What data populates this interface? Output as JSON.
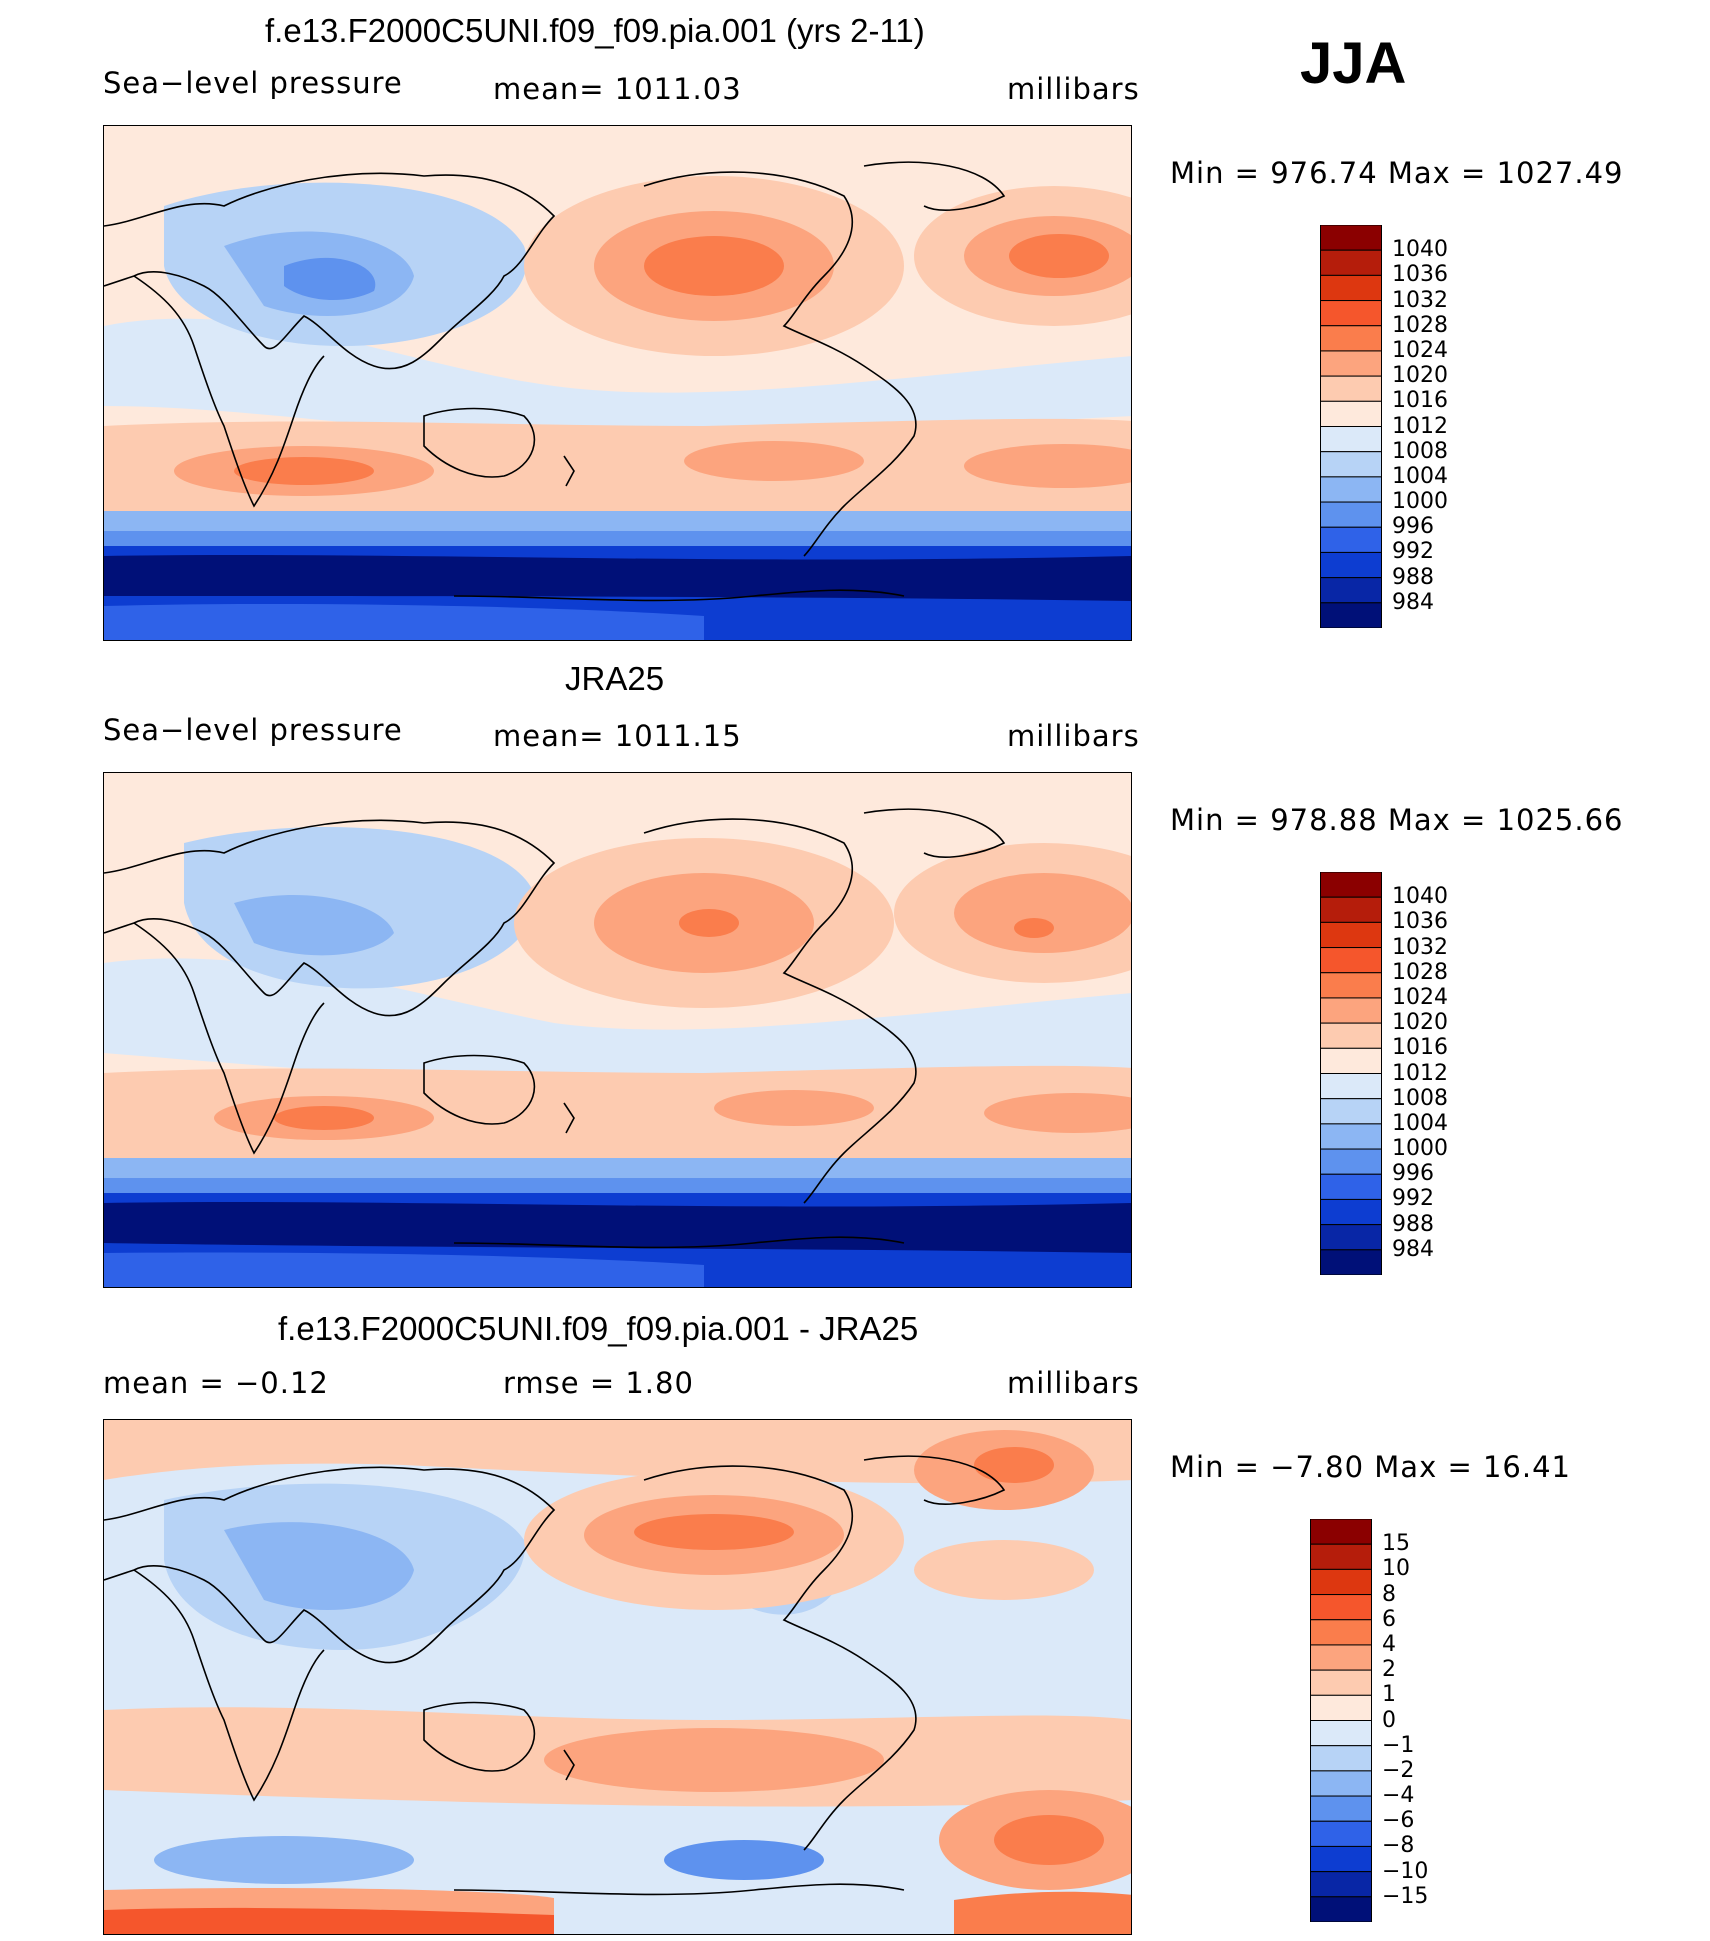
{
  "season": "JJA",
  "panels": [
    {
      "id": "model",
      "title": "f.e13.F2000C5UNI.f09_f09.pia.001 (yrs 2-11)",
      "left_label": "Sea−level pressure",
      "center_label": "mean=  1011.03",
      "units": "millibars",
      "minmax": "Min  =  976.74  Max  =  1027.49"
    },
    {
      "id": "obs",
      "title": "JRA25",
      "left_label": "Sea−level pressure",
      "center_label": "mean=  1011.15",
      "units": "millibars",
      "minmax": "Min  =  978.88  Max  =  1025.66"
    },
    {
      "id": "diff",
      "title": "f.e13.F2000C5UNI.f09_f09.pia.001 - JRA25",
      "left_label": "mean  =     −0.12",
      "center_label": "rmse  =     1.80",
      "units": "millibars",
      "minmax": "Min  =    −7.80  Max  =    16.41"
    }
  ],
  "colorbars": {
    "abs": {
      "labels": [
        "1040",
        "1036",
        "1032",
        "1028",
        "1024",
        "1020",
        "1016",
        "1012",
        "1008",
        "1004",
        "1000",
        "996",
        "992",
        "988",
        "984"
      ],
      "colors": [
        "#8b0000",
        "#b51d0b",
        "#dd3710",
        "#f5562c",
        "#fa7d4c",
        "#fca47e",
        "#fdcbb0",
        "#fee9dc",
        "#dbe9f9",
        "#b7d3f6",
        "#8cb6f3",
        "#5e92ee",
        "#2f62e8",
        "#0d3dd1",
        "#0826a6",
        "#001078"
      ]
    },
    "diff": {
      "labels": [
        "15",
        "10",
        "8",
        "6",
        "4",
        "2",
        "1",
        "0",
        "−1",
        "−2",
        "−4",
        "−6",
        "−8",
        "−10",
        "−15"
      ],
      "colors": [
        "#8b0000",
        "#b51d0b",
        "#dd3710",
        "#f5562c",
        "#fa7d4c",
        "#fca47e",
        "#fdcbb0",
        "#fee9dc",
        "#dbe9f9",
        "#b7d3f6",
        "#8cb6f3",
        "#5e92ee",
        "#2f62e8",
        "#0d3dd1",
        "#0826a6",
        "#001078"
      ]
    }
  },
  "map_colors": {
    "high_strong": "#f5562c",
    "high_mid": "#fa7d4c",
    "high_light": "#fca47e",
    "high_pale": "#fdcbb0",
    "neutral_warm": "#fee9dc",
    "neutral_cool": "#dbe9f9",
    "low_light": "#b7d3f6",
    "low_mid": "#8cb6f3",
    "low_strong": "#5e92ee",
    "low_deep": "#2f62e8",
    "low_deeper": "#0d3dd1",
    "low_darkest": "#001078",
    "coast": "#000000"
  }
}
